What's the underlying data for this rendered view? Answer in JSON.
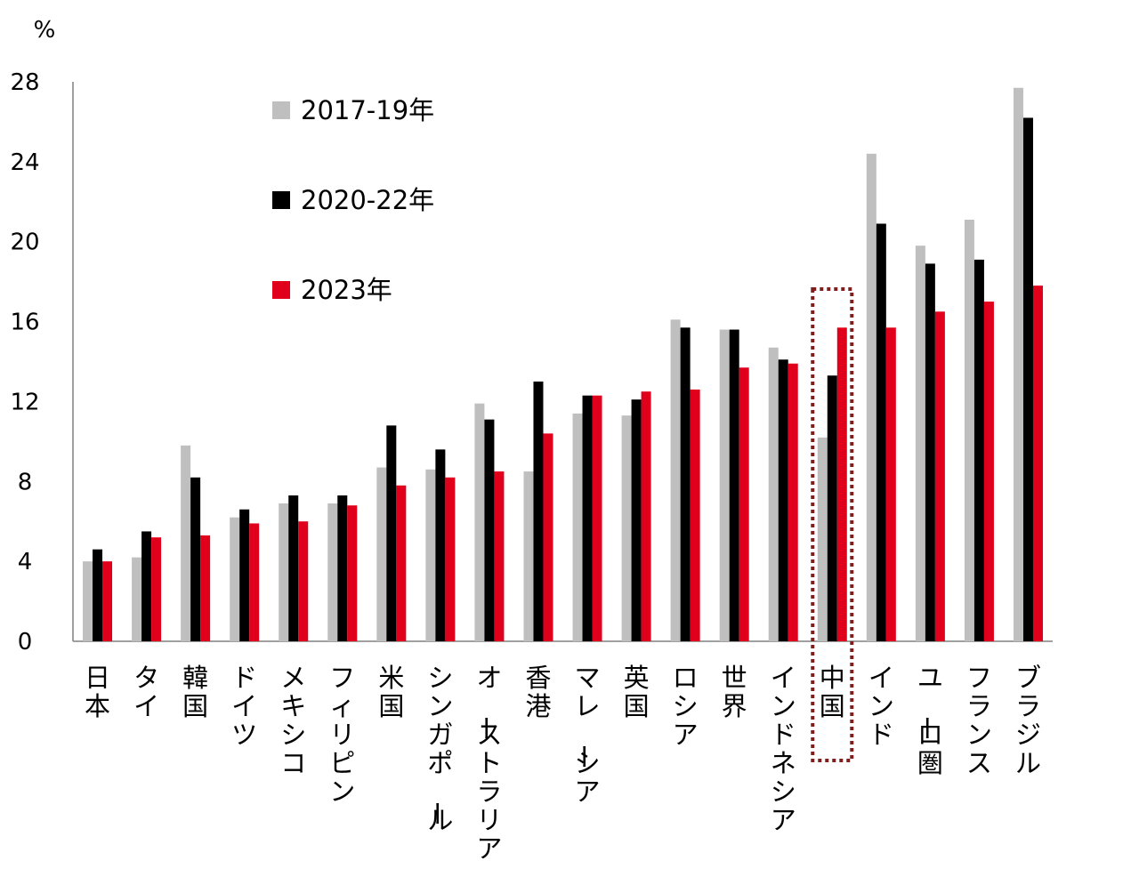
{
  "chart_data": {
    "type": "bar",
    "ylabel": "%",
    "ylim": [
      0,
      28
    ],
    "yticks": [
      0,
      4,
      8,
      12,
      16,
      20,
      24,
      28
    ],
    "grid": false,
    "legend_position": "top-left",
    "categories": [
      "日本",
      "タイ",
      "韓国",
      "ドイツ",
      "メキシコ",
      "フィリピン",
      "米国",
      "シンガポール",
      "オーストラリア",
      "香港",
      "マレーシア",
      "英国",
      "ロシア",
      "世界",
      "インドネシア",
      "中国",
      "インド",
      "ユーロ圏",
      "フランス",
      "ブラジル"
    ],
    "series": [
      {
        "name": "2017-19年",
        "color": "#bfbfbf",
        "values": [
          4.0,
          4.2,
          9.8,
          6.2,
          6.9,
          6.9,
          8.7,
          8.6,
          11.9,
          8.5,
          11.4,
          11.3,
          16.1,
          15.6,
          14.7,
          10.2,
          24.4,
          19.8,
          21.1,
          27.7
        ]
      },
      {
        "name": "2020-22年",
        "color": "#000000",
        "values": [
          4.6,
          5.5,
          8.2,
          6.6,
          7.3,
          7.3,
          10.8,
          9.6,
          11.1,
          13.0,
          12.3,
          12.1,
          15.7,
          15.6,
          14.1,
          13.3,
          20.9,
          18.9,
          19.1,
          26.2
        ]
      },
      {
        "name": "2023年",
        "color": "#e0001b",
        "values": [
          4.0,
          5.2,
          5.3,
          5.9,
          6.0,
          6.8,
          7.8,
          8.2,
          8.5,
          10.4,
          12.3,
          12.5,
          12.6,
          13.7,
          13.9,
          15.7,
          15.7,
          16.5,
          17.0,
          17.8
        ]
      }
    ],
    "highlight": {
      "category": "中国",
      "style": "dotted-box",
      "color": "#7b1f1f"
    }
  }
}
